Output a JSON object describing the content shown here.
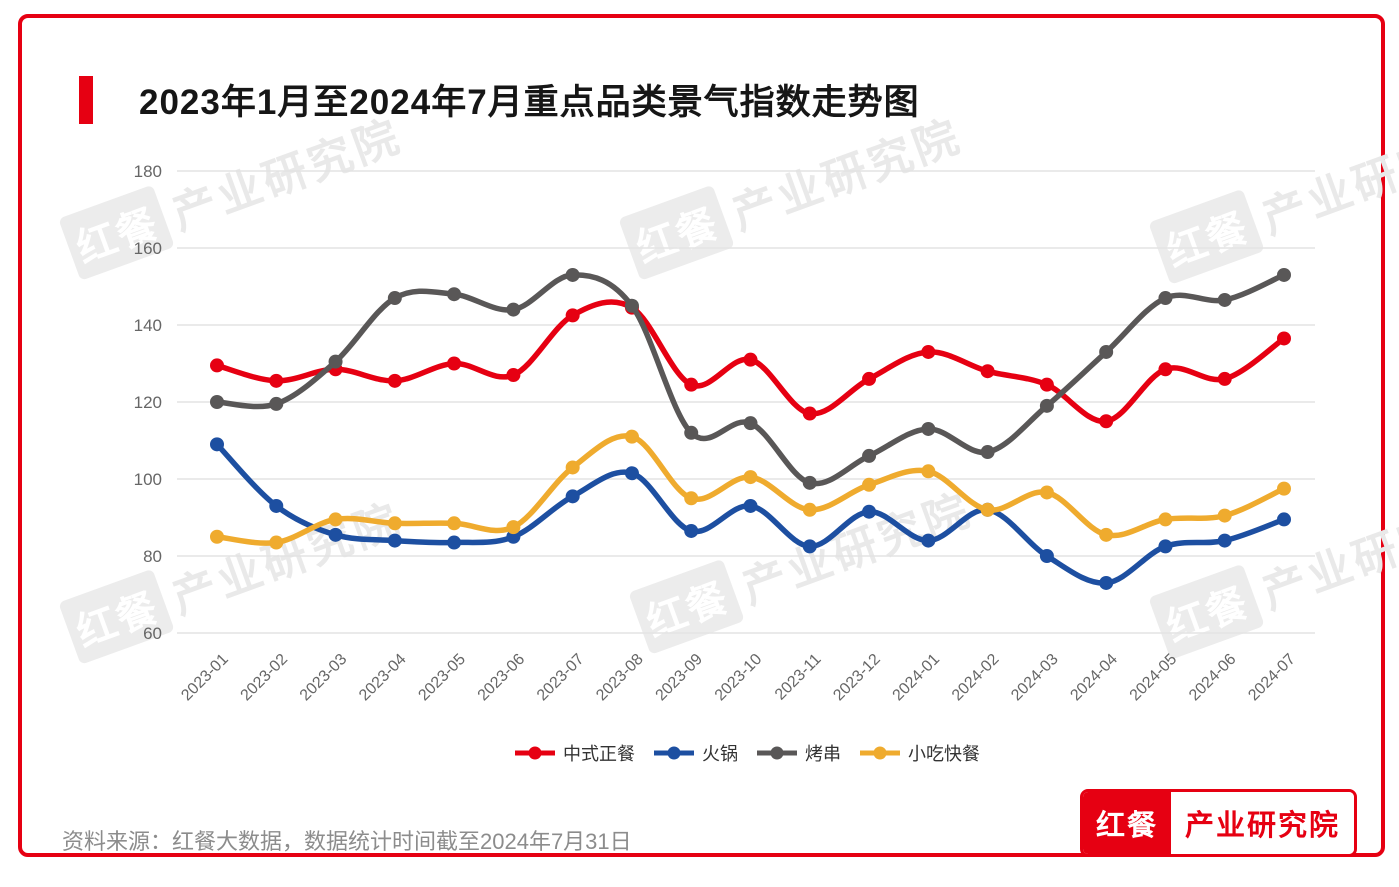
{
  "title": "2023年1月至2024年7月重点品类景气指数走势图",
  "source_note": "资料来源：红餐大数据，数据统计时间截至2024年7月31日",
  "logo": {
    "left": "红餐",
    "right": "产业研究院"
  },
  "watermark": {
    "brand": "红餐",
    "text": "产业研究院"
  },
  "colors": {
    "accent_red": "#e60012",
    "grid": "#e3e3e3",
    "axis_text": "#666666",
    "watermark": "#e9e9e9"
  },
  "chart_data": {
    "type": "line",
    "x": [
      "2023-01",
      "2023-02",
      "2023-03",
      "2023-04",
      "2023-05",
      "2023-06",
      "2023-07",
      "2023-08",
      "2023-09",
      "2023-10",
      "2023-11",
      "2023-12",
      "2024-01",
      "2024-02",
      "2024-03",
      "2024-04",
      "2024-05",
      "2024-06",
      "2024-07"
    ],
    "series": [
      {
        "name": "中式正餐",
        "color": "#e60012",
        "values": [
          129.5,
          125.5,
          128.5,
          125.5,
          130,
          127,
          142.5,
          144.5,
          124.5,
          131,
          117,
          126,
          133,
          128,
          124.5,
          115,
          128.5,
          126,
          136.5
        ]
      },
      {
        "name": "火锅",
        "color": "#1d4fa1",
        "values": [
          109,
          93,
          85.5,
          84,
          83.5,
          85,
          95.5,
          101.5,
          86.5,
          93,
          82.5,
          91.5,
          84,
          92,
          80,
          73,
          82.5,
          84,
          89.5
        ]
      },
      {
        "name": "烤串",
        "color": "#595757",
        "values": [
          120,
          119.5,
          130.5,
          147,
          148,
          144,
          153,
          145,
          112,
          114.5,
          99,
          106,
          113,
          107,
          119,
          133,
          147,
          146.5,
          153
        ]
      },
      {
        "name": "小吃快餐",
        "color": "#efab2e",
        "values": [
          85,
          83.5,
          89.5,
          88.5,
          88.5,
          87.5,
          103,
          111,
          95,
          100.5,
          92,
          98.5,
          102,
          92,
          96.5,
          85.5,
          89.5,
          90.5,
          97.5
        ]
      }
    ],
    "ylim": [
      60,
      180
    ],
    "yticks": [
      60,
      80,
      100,
      120,
      140,
      160,
      180
    ],
    "grid": "horizontal",
    "legend_position": "bottom",
    "xlabel": "",
    "ylabel": ""
  }
}
